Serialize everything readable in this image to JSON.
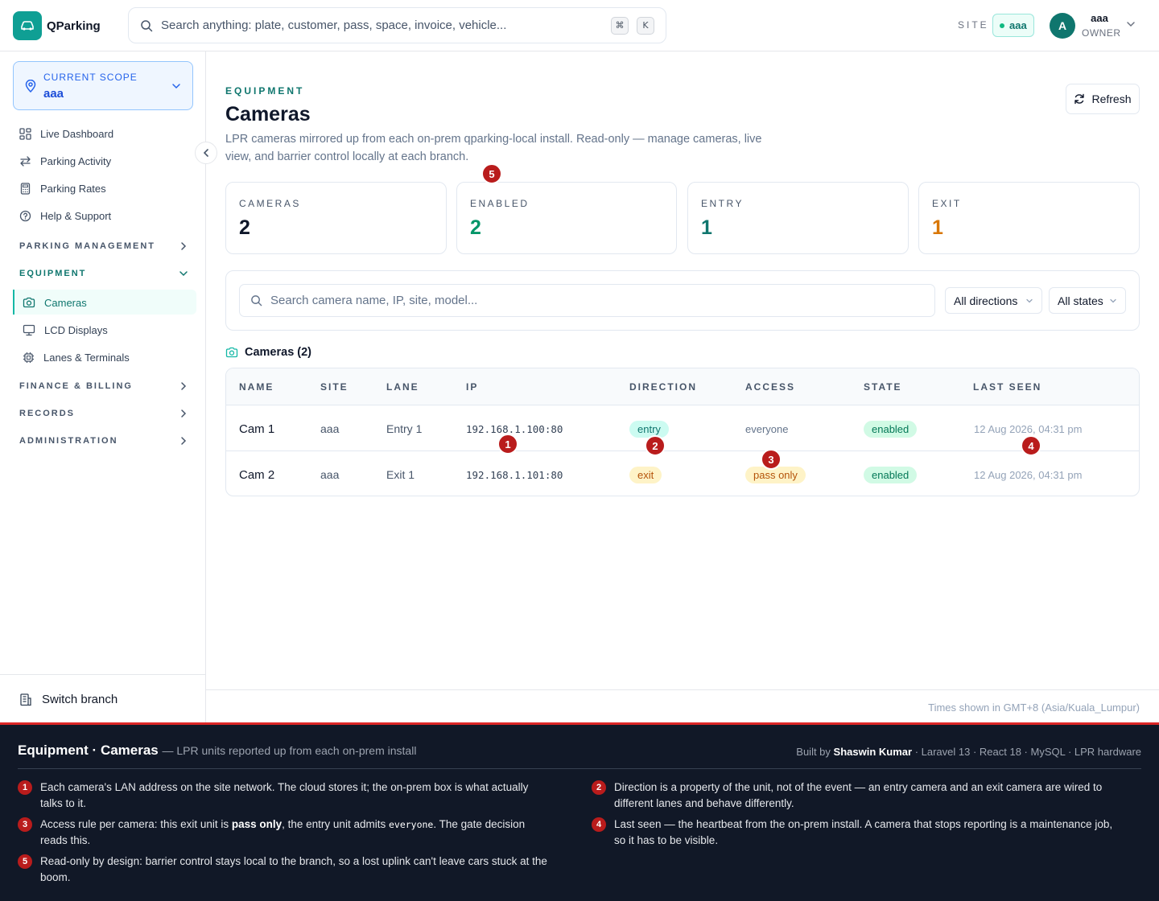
{
  "app": {
    "name": "QParking"
  },
  "header": {
    "search_placeholder": "Search anything: plate, customer, pass, space, invoice, vehicle...",
    "shortcut_cmd": "⌘",
    "shortcut_key": "K",
    "site_label": "SITE",
    "site_value": "aaa",
    "avatar_initial": "A",
    "user_name": "aaa",
    "user_role": "OWNER"
  },
  "sidebar": {
    "scope_label": "CURRENT SCOPE",
    "scope_value": "aaa",
    "items": [
      {
        "label": "Live Dashboard",
        "icon": "dashboard-icon"
      },
      {
        "label": "Parking Activity",
        "icon": "swap-arrows-icon"
      },
      {
        "label": "Parking Rates",
        "icon": "calculator-icon"
      },
      {
        "label": "Help & Support",
        "icon": "help-circle-icon"
      }
    ],
    "sections": {
      "parking_management": "PARKING MANAGEMENT",
      "equipment": "EQUIPMENT",
      "finance": "FINANCE & BILLING",
      "records": "RECORDS",
      "administration": "ADMINISTRATION"
    },
    "equipment_items": [
      {
        "label": "Cameras",
        "icon": "camera-icon",
        "active": true
      },
      {
        "label": "LCD Displays",
        "icon": "monitor-icon"
      },
      {
        "label": "Lanes & Terminals",
        "icon": "chip-icon"
      }
    ],
    "switch_label": "Switch branch"
  },
  "page": {
    "eyebrow": "EQUIPMENT",
    "title": "Cameras",
    "description": "LPR cameras mirrored up from each on-prem qparking-local install. Read-only — manage cameras, live view, and barrier control locally at each branch.",
    "refresh_label": "Refresh"
  },
  "stats": [
    {
      "label": "CAMERAS",
      "value": "2",
      "color": "#0f172a"
    },
    {
      "label": "ENABLED",
      "value": "2",
      "color": "#059669"
    },
    {
      "label": "ENTRY",
      "value": "1",
      "color": "#0f766e"
    },
    {
      "label": "EXIT",
      "value": "1",
      "color": "#d97706"
    }
  ],
  "filters": {
    "search_placeholder": "Search camera name, IP, site, model...",
    "direction": "All directions",
    "state": "All states"
  },
  "table": {
    "title": "Cameras (2)",
    "columns": [
      "NAME",
      "SITE",
      "LANE",
      "IP",
      "DIRECTION",
      "ACCESS",
      "STATE",
      "LAST SEEN"
    ],
    "rows": [
      {
        "name": "Cam 1",
        "site": "aaa",
        "lane": "Entry 1",
        "ip": "192.168.1.100:80",
        "direction": "entry",
        "access": "everyone",
        "state": "enabled",
        "last_seen": "12 Aug 2026, 04:31 pm"
      },
      {
        "name": "Cam 2",
        "site": "aaa",
        "lane": "Exit 1",
        "ip": "192.168.1.101:80",
        "direction": "exit",
        "access": "pass only",
        "state": "enabled",
        "last_seen": "12 Aug 2026, 04:31 pm"
      }
    ]
  },
  "footnote": "Times shown in GMT+8 (Asia/Kuala_Lumpur)",
  "markers": [
    "1",
    "2",
    "3",
    "4",
    "5"
  ],
  "annotation_panel": {
    "title": "Equipment · Cameras",
    "subtitle": "— LPR units reported up from each on-prem install",
    "credit_prefix": "Built by",
    "credit_name": "Shaswin Kumar",
    "credit_suffix": "· Laravel 13 · React 18 · MySQL · LPR hardware",
    "notes": {
      "n1": "Each camera's LAN address on the site network. The cloud stores it; the on-prem box is what actually talks to it.",
      "n2": "Direction is a property of the unit, not of the event — an entry camera and an exit camera are wired to different lanes and behave differently.",
      "n3_a": "Access rule per camera: this exit unit is",
      "n3_b": "pass only",
      "n3_c": ", the entry unit admits",
      "n3_d": "everyone",
      "n3_e": ". The gate decision reads this.",
      "n4": "Last seen — the heartbeat from the on-prem install. A camera that stops reporting is a maintenance job, so it has to be visible.",
      "n5": "Read-only by design: barrier control stays local to the branch, so a lost uplink can't leave cars stuck at the boom."
    }
  }
}
